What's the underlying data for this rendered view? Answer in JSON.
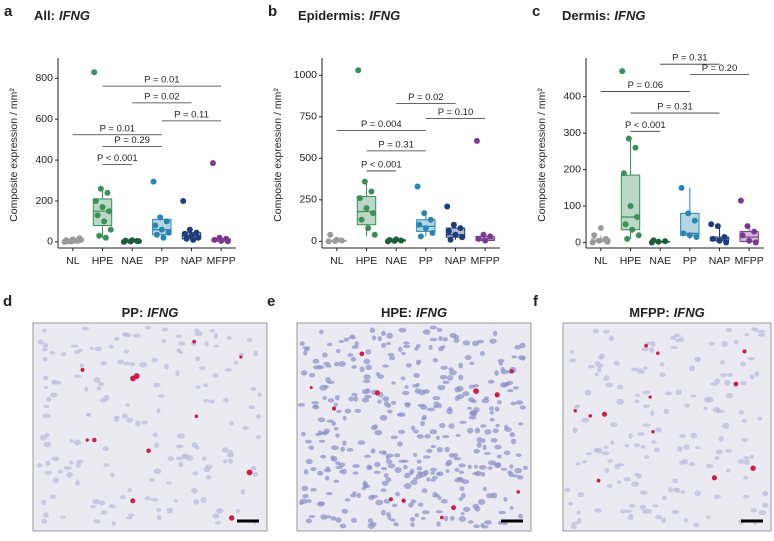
{
  "chart_data": [
    {
      "type": "box",
      "letter": "a",
      "title": "All:",
      "title_gene": "IFNG",
      "y_label": "Composite expression / mm²",
      "categories": [
        "NL",
        "HPE",
        "NAE",
        "PP",
        "NAP",
        "MFPP"
      ],
      "colors": [
        "#9a9a9a",
        "#3a8f5a",
        "#1d5e3a",
        "#2a86b0",
        "#1e3d7a",
        "#7b3a8f"
      ],
      "ylim": [
        -30,
        880
      ],
      "yticks": [
        0,
        200,
        400,
        600,
        800
      ],
      "boxes": [
        {
          "whisker_low": 0,
          "q1": 2,
          "median": 5,
          "q3": 10,
          "whisker_high": 20
        },
        {
          "whisker_low": 20,
          "q1": 80,
          "median": 150,
          "q3": 210,
          "whisker_high": 260
        },
        {
          "whisker_low": 0,
          "q1": 1,
          "median": 3,
          "q3": 6,
          "whisker_high": 10
        },
        {
          "whisker_low": 20,
          "q1": 35,
          "median": 60,
          "q3": 110,
          "whisker_high": 125
        },
        {
          "whisker_low": 5,
          "q1": 15,
          "median": 30,
          "q3": 45,
          "whisker_high": 60
        },
        {
          "whisker_low": 0,
          "q1": 3,
          "median": 8,
          "q3": 15,
          "whisker_high": 20
        }
      ],
      "points": [
        [
          0,
          2,
          5,
          8,
          12,
          18,
          3,
          6,
          10
        ],
        [
          830,
          260,
          240,
          200,
          170,
          150,
          130,
          100,
          60,
          30,
          20
        ],
        [
          0,
          2,
          4,
          6,
          8,
          3
        ],
        [
          295,
          120,
          100,
          80,
          60,
          45,
          35,
          20
        ],
        [
          200,
          60,
          45,
          40,
          30,
          20,
          15,
          10
        ],
        [
          385,
          20,
          15,
          10,
          5,
          3
        ]
      ],
      "comparisons": [
        {
          "between": [
            "HPE",
            "NAE"
          ],
          "y": 378,
          "label": "P < 0.001"
        },
        {
          "between": [
            "HPE",
            "PP"
          ],
          "y": 466,
          "label": "P = 0.29"
        },
        {
          "between": [
            "NL",
            "PP"
          ],
          "y": 524,
          "label": "P = 0.01"
        },
        {
          "between": [
            "PP",
            "MFPP"
          ],
          "y": 592,
          "label": "P = 0.11"
        },
        {
          "between": [
            "NAE",
            "NAP"
          ],
          "y": 680,
          "label": "P = 0.02"
        },
        {
          "between": [
            "HPE",
            "MFPP"
          ],
          "y": 762,
          "label": "P = 0.01"
        }
      ]
    },
    {
      "type": "box",
      "letter": "b",
      "title": "Epidermis:",
      "title_gene": "IFNG",
      "y_label": "Composite expression / mm²",
      "categories": [
        "NL",
        "HPE",
        "NAE",
        "PP",
        "NAP",
        "MFPP"
      ],
      "colors": [
        "#9a9a9a",
        "#3a8f5a",
        "#1d5e3a",
        "#2a86b0",
        "#1e3d7a",
        "#7b3a8f"
      ],
      "ylim": [
        -40,
        1080
      ],
      "yticks": [
        0,
        250,
        500,
        750,
        1000
      ],
      "boxes": [
        {
          "whisker_low": 0,
          "q1": 0,
          "median": 2,
          "q3": 5,
          "whisker_high": 10
        },
        {
          "whisker_low": 30,
          "q1": 100,
          "median": 180,
          "q3": 270,
          "whisker_high": 360
        },
        {
          "whisker_low": 0,
          "q1": 2,
          "median": 5,
          "q3": 10,
          "whisker_high": 15
        },
        {
          "whisker_low": 30,
          "q1": 60,
          "median": 90,
          "q3": 130,
          "whisker_high": 170
        },
        {
          "whisker_low": 10,
          "q1": 25,
          "median": 40,
          "q3": 80,
          "whisker_high": 100
        },
        {
          "whisker_low": 0,
          "q1": 5,
          "median": 15,
          "q3": 30,
          "whisker_high": 40
        }
      ],
      "points": [
        [
          0,
          2,
          5,
          40,
          10
        ],
        [
          1030,
          360,
          300,
          260,
          200,
          170,
          130,
          80,
          40
        ],
        [
          0,
          3,
          5,
          8,
          12
        ],
        [
          330,
          170,
          130,
          100,
          80,
          50,
          30
        ],
        [
          210,
          100,
          80,
          60,
          40,
          25,
          10
        ],
        [
          605,
          40,
          30,
          15,
          5
        ]
      ],
      "comparisons": [
        {
          "between": [
            "HPE",
            "NAE"
          ],
          "y": 424,
          "label": "P < 0.001"
        },
        {
          "between": [
            "HPE",
            "PP"
          ],
          "y": 545,
          "label": "P = 0.31"
        },
        {
          "between": [
            "NL",
            "PP"
          ],
          "y": 667,
          "label": "P = 0.004"
        },
        {
          "between": [
            "PP",
            "MFPP"
          ],
          "y": 739,
          "label": "P = 0.10"
        },
        {
          "between": [
            "NAE",
            "NAP"
          ],
          "y": 830,
          "label": "P = 0.02"
        }
      ]
    },
    {
      "type": "box",
      "letter": "c",
      "title": "Dermis:",
      "title_gene": "IFNG",
      "y_label": "Composite expression / mm²",
      "categories": [
        "NL",
        "HPE",
        "NAE",
        "PP",
        "NAP",
        "MFPP"
      ],
      "colors": [
        "#9a9a9a",
        "#3a8f5a",
        "#1d5e3a",
        "#2a86b0",
        "#1e3d7a",
        "#7b3a8f"
      ],
      "ylim": [
        -15,
        495
      ],
      "yticks": [
        0,
        100,
        200,
        300,
        400
      ],
      "boxes": [
        {
          "whisker_low": 0,
          "q1": 2,
          "median": 5,
          "q3": 10,
          "whisker_high": 20
        },
        {
          "whisker_low": 10,
          "q1": 35,
          "median": 70,
          "q3": 185,
          "whisker_high": 280
        },
        {
          "whisker_low": 0,
          "q1": 1,
          "median": 2,
          "q3": 3,
          "whisker_high": 5
        },
        {
          "whisker_low": 10,
          "q1": 20,
          "median": 25,
          "q3": 80,
          "whisker_high": 150
        },
        {
          "whisker_low": 0,
          "q1": 5,
          "median": 10,
          "q3": 15,
          "whisker_high": 45
        },
        {
          "whisker_low": 0,
          "q1": 3,
          "median": 15,
          "q3": 30,
          "whisker_high": 45
        }
      ],
      "points": [
        [
          0,
          5,
          10,
          20,
          40,
          2
        ],
        [
          470,
          285,
          260,
          190,
          100,
          70,
          50,
          35,
          20,
          10
        ],
        [
          0,
          2,
          4,
          6
        ],
        [
          150,
          80,
          60,
          25,
          20,
          15
        ],
        [
          50,
          45,
          15,
          10,
          5,
          0
        ],
        [
          115,
          45,
          30,
          20,
          5,
          0
        ]
      ],
      "comparisons": [
        {
          "between": [
            "HPE",
            "NAE"
          ],
          "y": 305,
          "label": "P < 0.001"
        },
        {
          "between": [
            "HPE",
            "NAP"
          ],
          "y": 355,
          "label": "P = 0.31"
        },
        {
          "between": [
            "NL",
            "PP"
          ],
          "y": 414,
          "label": "P = 0.06"
        },
        {
          "between": [
            "PP",
            "MFPP"
          ],
          "y": 461,
          "label": "P = 0.20"
        },
        {
          "between": [
            "NAE",
            "NAP"
          ],
          "y": 489,
          "label": "P = 0.31"
        }
      ]
    }
  ],
  "images": [
    {
      "letter": "d",
      "title": "PP:",
      "title_gene": "IFNG"
    },
    {
      "letter": "e",
      "title": "HPE:",
      "title_gene": "IFNG"
    },
    {
      "letter": "f",
      "title": "MFPP:",
      "title_gene": "IFNG"
    }
  ]
}
